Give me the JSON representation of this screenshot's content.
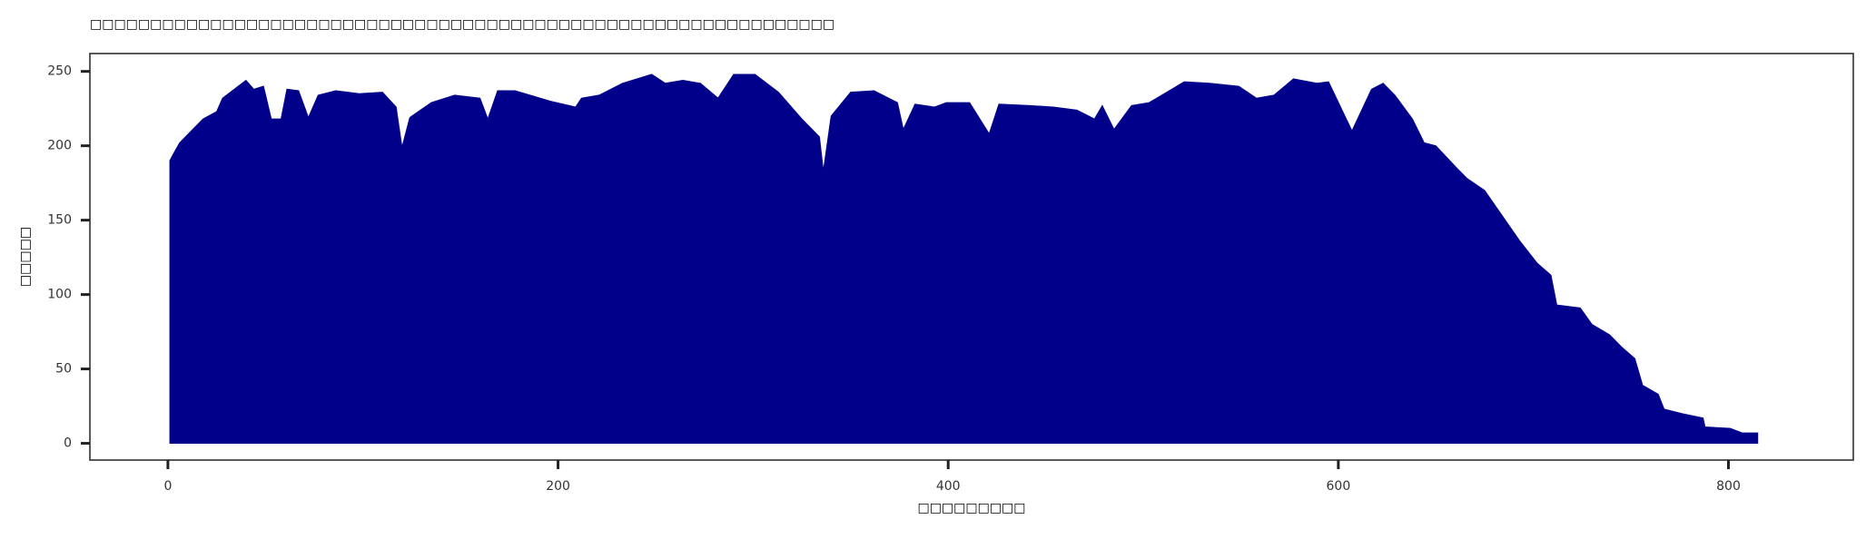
{
  "chart_data": {
    "type": "area",
    "title": "□□□□□□□□□□□□□□□□□□□□□□□□□□□□□□□□□□□□□□□□□□□□□□□□□□□□□□□□□□□□□□",
    "xlabel": "□□□□□□□□□",
    "ylabel": "□□□□□",
    "color": "#00008b",
    "xlim": [
      -40,
      864
    ],
    "ylim": [
      -11.25,
      262
    ],
    "xticks": [
      0,
      200,
      400,
      600,
      800
    ],
    "yticks": [
      0,
      50,
      100,
      150,
      200,
      250
    ],
    "x": [
      1,
      3,
      6,
      12,
      18,
      25,
      28,
      34,
      40,
      44,
      49,
      53,
      58,
      61,
      67,
      72,
      77,
      86,
      98,
      110,
      117,
      120,
      124,
      135,
      147,
      160,
      164,
      169,
      178,
      196,
      209,
      212,
      221,
      233,
      248,
      255,
      264,
      273,
      282,
      290,
      301,
      313,
      325,
      334,
      336,
      340,
      350,
      362,
      374,
      377,
      383,
      393,
      399,
      411,
      421,
      426,
      442,
      454,
      466,
      475,
      479,
      485,
      494,
      503,
      512,
      521,
      534,
      549,
      558,
      567,
      577,
      589,
      595,
      607,
      617,
      623,
      629,
      638,
      644,
      650,
      660,
      666,
      675,
      684,
      693,
      702,
      709,
      712,
      724,
      730,
      739,
      745,
      752,
      756,
      764,
      767,
      776,
      787,
      788,
      801,
      807,
      815
    ],
    "values": [
      190,
      195,
      202,
      210,
      218,
      223,
      232,
      238,
      244,
      238,
      240,
      218,
      218,
      238,
      237,
      219,
      234,
      237,
      235,
      236,
      226,
      199,
      219,
      229,
      234,
      232,
      218,
      237,
      237,
      230,
      226,
      232,
      234,
      242,
      248,
      242,
      244,
      242,
      232,
      248,
      248,
      236,
      218,
      206,
      183,
      220,
      236,
      237,
      229,
      211,
      228,
      226,
      229,
      229,
      208,
      228,
      227,
      226,
      224,
      218,
      227,
      211,
      227,
      229,
      236,
      243,
      242,
      240,
      232,
      234,
      245,
      242,
      243,
      210,
      238,
      242,
      234,
      218,
      202,
      200,
      186,
      178,
      170,
      153,
      136,
      121,
      113,
      93,
      91,
      80,
      73,
      65,
      57,
      39,
      33,
      23,
      20,
      17,
      11,
      10,
      7,
      7
    ]
  }
}
